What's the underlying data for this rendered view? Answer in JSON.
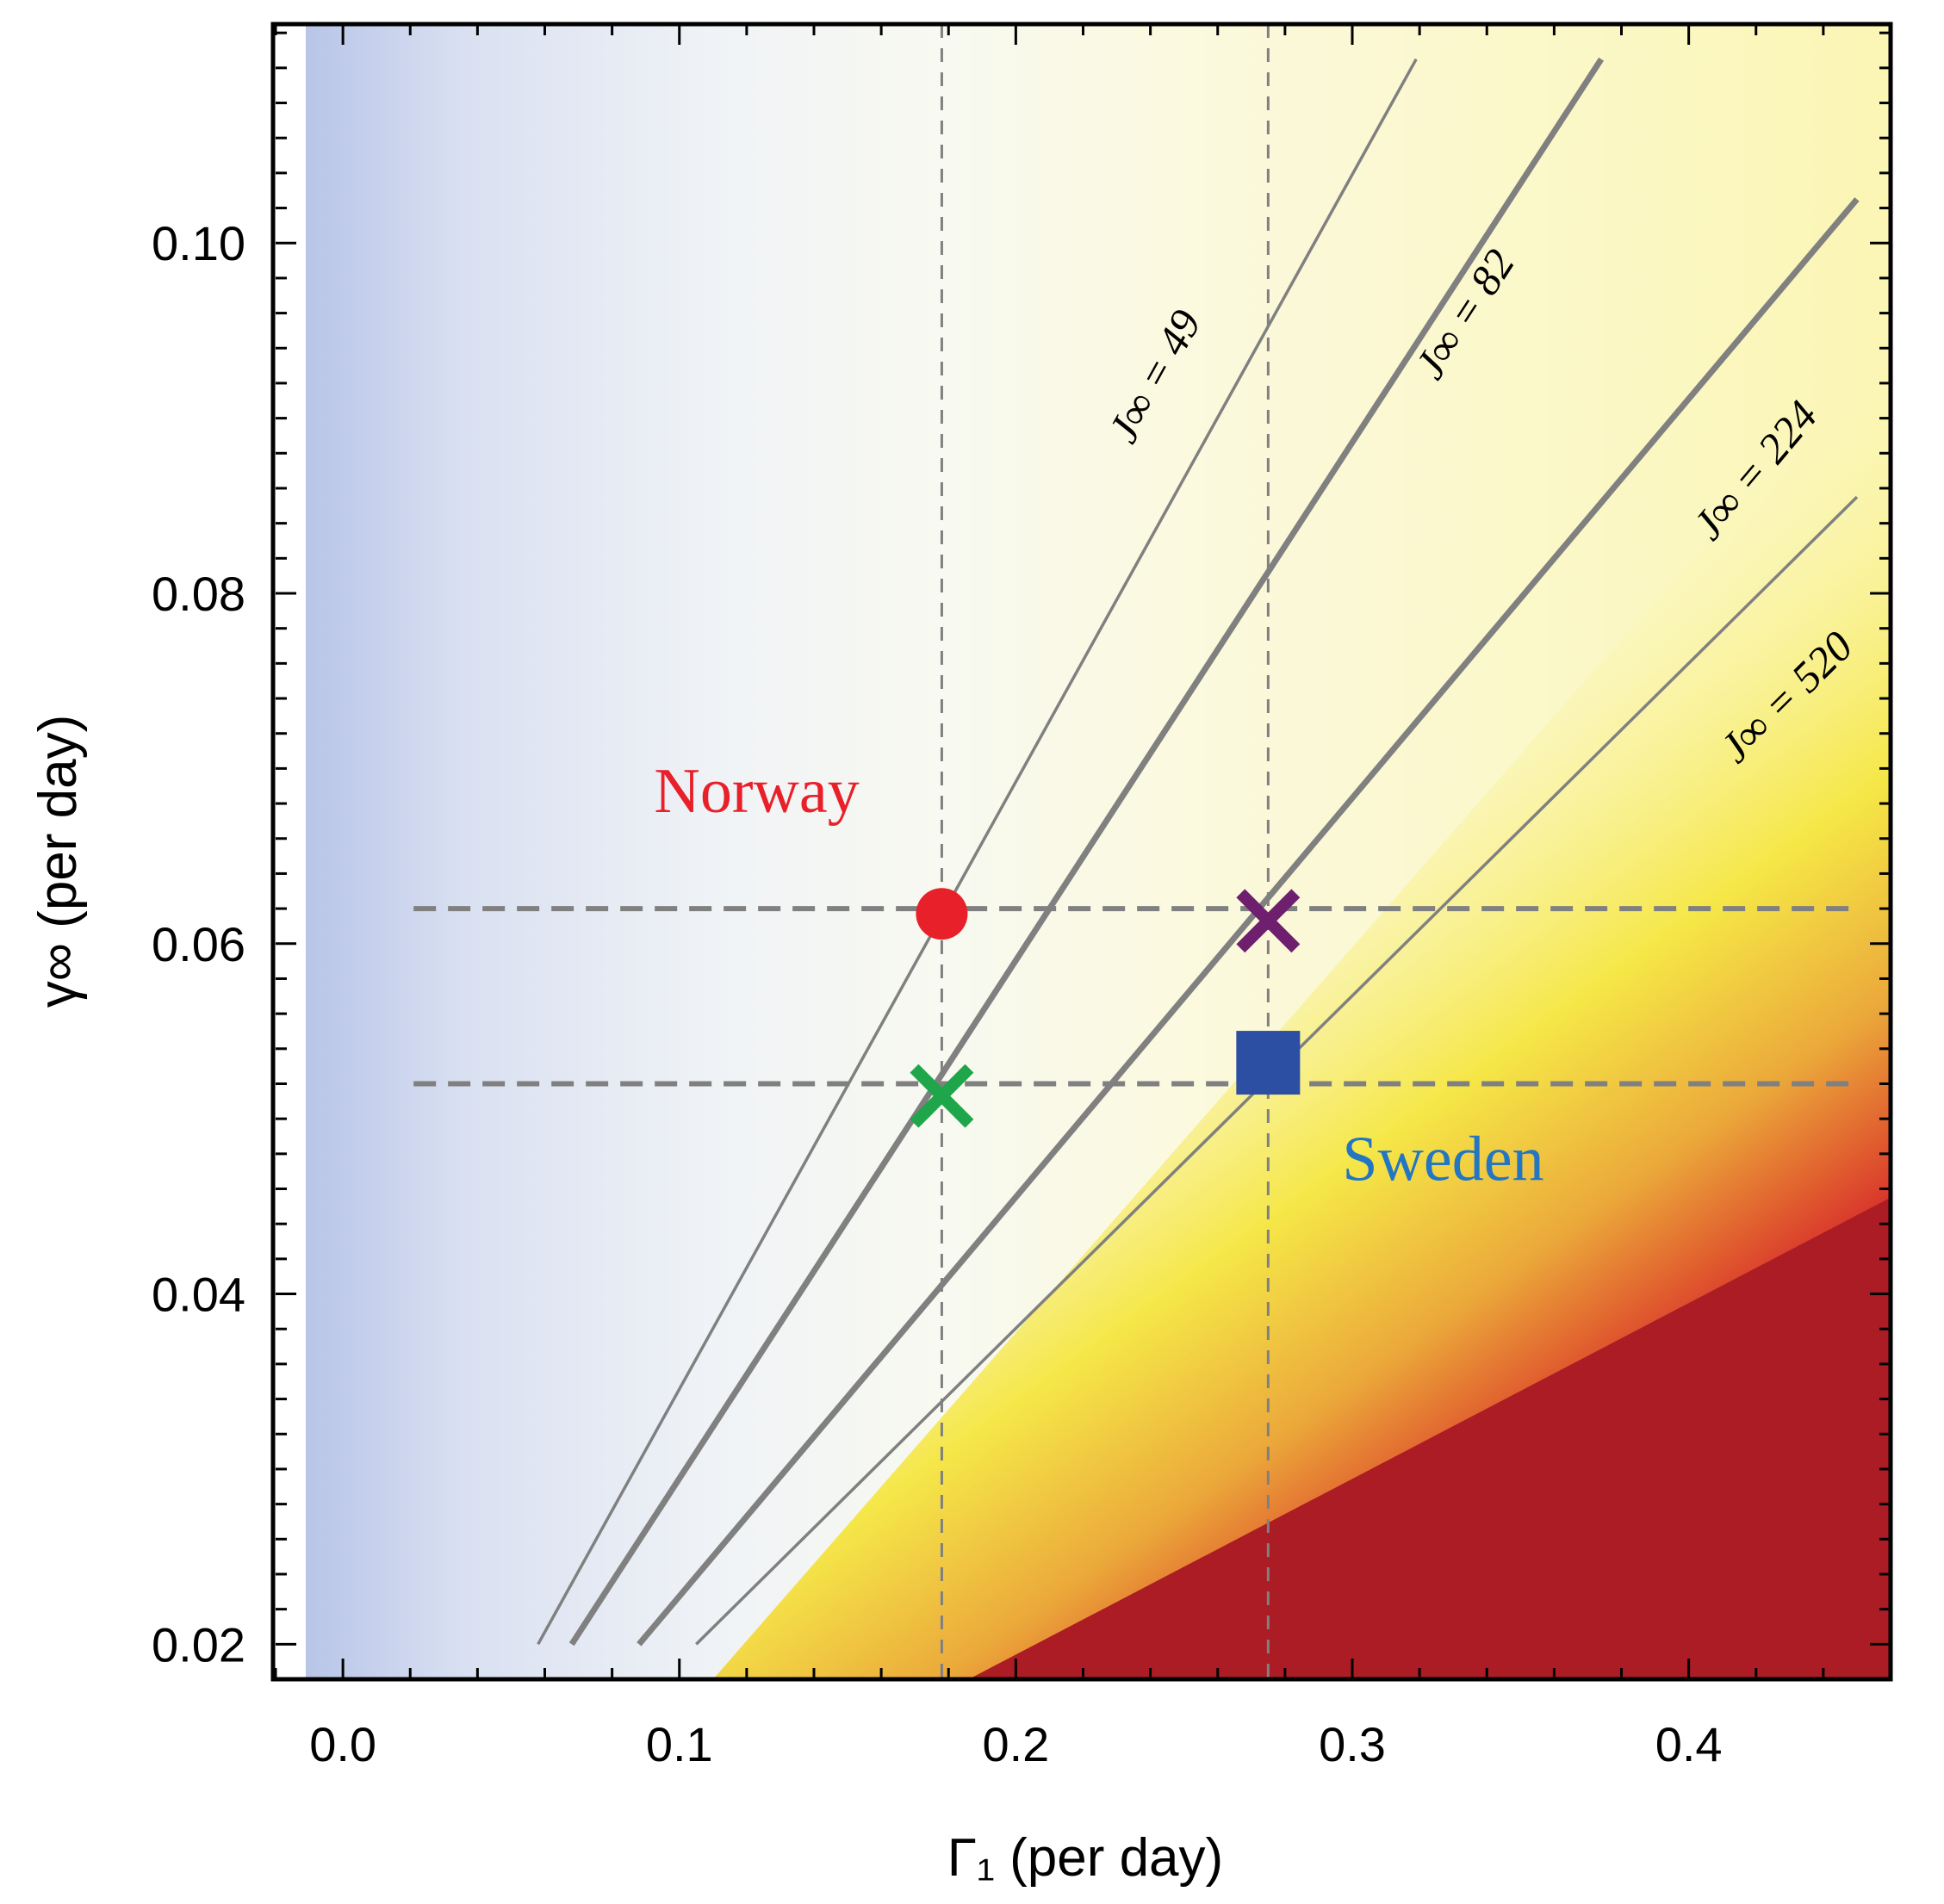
{
  "chart_data": {
    "type": "heatmap",
    "title": "",
    "xlabel": "Γ₁ (per day)",
    "ylabel": "γ∞ (per day)",
    "xlim": [
      -0.02,
      0.46
    ],
    "ylim": [
      0.018,
      0.1125
    ],
    "x_ticks": [
      {
        "value": 0.0,
        "label": "0.0"
      },
      {
        "value": 0.1,
        "label": "0.1"
      },
      {
        "value": 0.2,
        "label": "0.2"
      },
      {
        "value": 0.3,
        "label": "0.3"
      },
      {
        "value": 0.4,
        "label": "0.4"
      }
    ],
    "y_ticks": [
      {
        "value": 0.02,
        "label": "0.02"
      },
      {
        "value": 0.04,
        "label": "0.04"
      },
      {
        "value": 0.06,
        "label": "0.06"
      },
      {
        "value": 0.08,
        "label": "0.08"
      },
      {
        "value": 0.1,
        "label": "0.10"
      }
    ],
    "contours": [
      {
        "label": "J∞ = 49",
        "value": 49,
        "points": [
          [
            0.058,
            0.02
          ],
          [
            0.319,
            0.1105
          ]
        ],
        "weight": "thin",
        "label_at": [
          0.245,
          0.092
        ]
      },
      {
        "label": "J∞ = 82",
        "value": 82,
        "points": [
          [
            0.068,
            0.02
          ],
          [
            0.374,
            0.1105
          ]
        ],
        "weight": "thick",
        "label_at": [
          0.337,
          0.0955
        ]
      },
      {
        "label": "J∞ = 224",
        "value": 224,
        "points": [
          [
            0.088,
            0.02
          ],
          [
            0.45,
            0.1025
          ]
        ],
        "weight": "thick",
        "label_at": [
          0.423,
          0.0865
        ]
      },
      {
        "label": "J∞ = 520",
        "value": 520,
        "points": [
          [
            0.105,
            0.02
          ],
          [
            0.45,
            0.0855
          ]
        ],
        "weight": "thin",
        "label_at": [
          0.432,
          0.0735
        ]
      }
    ],
    "reference_lines": {
      "vertical": [
        0.178,
        0.275
      ],
      "horizontal": [
        0.062,
        0.052
      ],
      "horizontal_x_range": [
        0.021,
        0.45
      ]
    },
    "markers": [
      {
        "name": "Norway",
        "shape": "circle",
        "x": 0.178,
        "y": 0.0617,
        "color": "#e8202a"
      },
      {
        "name": "purple-cross",
        "shape": "cross",
        "x": 0.275,
        "y": 0.0613,
        "color": "#6e1f6e"
      },
      {
        "name": "green-cross",
        "shape": "cross",
        "x": 0.178,
        "y": 0.0513,
        "color": "#1fa64a"
      },
      {
        "name": "Sweden",
        "shape": "square",
        "x": 0.275,
        "y": 0.0532,
        "color": "#2c4ea3"
      }
    ],
    "annotations": [
      {
        "text": "Norway",
        "x": 0.123,
        "y": 0.0675,
        "color": "#e8202a"
      },
      {
        "text": "Sweden",
        "x": 0.327,
        "y": 0.0465,
        "color": "#2276c2"
      }
    ],
    "saturation_region_boundary": [
      [
        0.186,
        0.018
      ],
      [
        0.46,
        0.0455
      ]
    ],
    "colors": {
      "cool": "#b8c5e8",
      "neutral": "#f8f9f1",
      "warm_light": "#fbf8c4",
      "warm": "#f5e640",
      "hot": "#e8862a",
      "saturated": "#ab1c25",
      "guide": "#808080"
    }
  }
}
